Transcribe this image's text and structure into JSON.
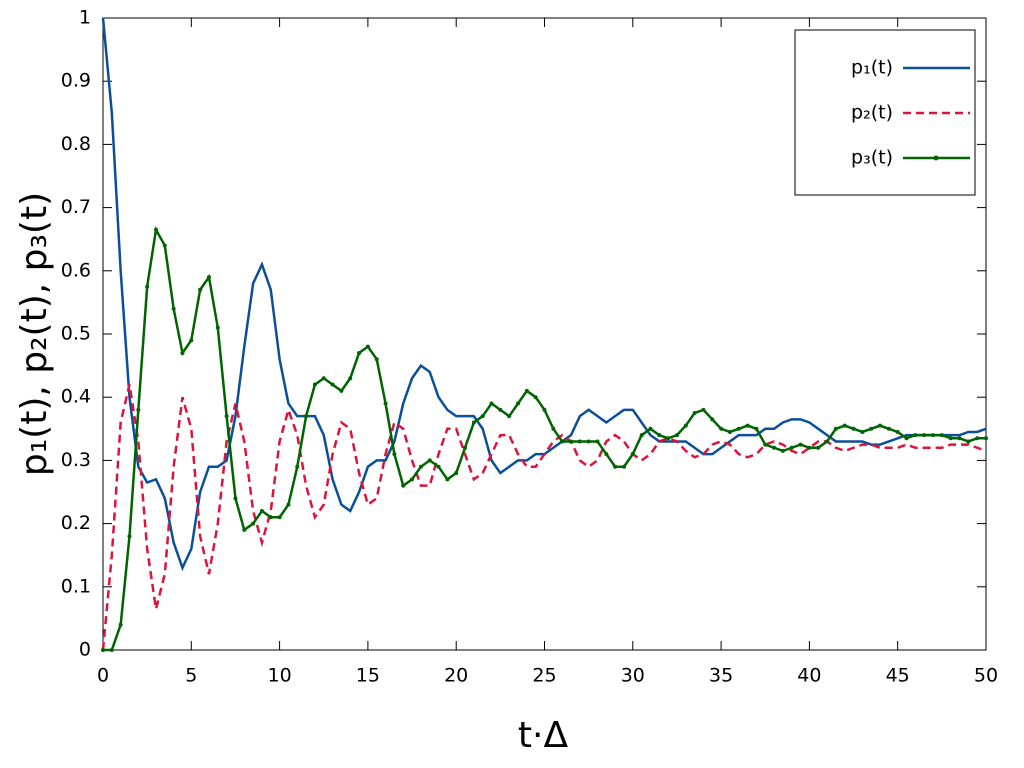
{
  "chart_data": {
    "type": "line",
    "xlabel": "t·Δ",
    "ylabel": "p₁(t), p₂(t), p₃(t)",
    "x": [
      0,
      0.5,
      1,
      1.5,
      2,
      2.5,
      3,
      3.5,
      4,
      4.5,
      5,
      5.5,
      6,
      6.5,
      7,
      7.5,
      8,
      8.5,
      9,
      9.5,
      10,
      10.5,
      11,
      11.5,
      12,
      12.5,
      13,
      13.5,
      14,
      14.5,
      15,
      15.5,
      16,
      16.5,
      17,
      17.5,
      18,
      18.5,
      19,
      19.5,
      20,
      20.5,
      21,
      21.5,
      22,
      22.5,
      23,
      23.5,
      24,
      24.5,
      25,
      25.5,
      26,
      26.5,
      27,
      27.5,
      28,
      28.5,
      29,
      29.5,
      30,
      30.5,
      31,
      31.5,
      32,
      32.5,
      33,
      33.5,
      34,
      34.5,
      35,
      35.5,
      36,
      36.5,
      37,
      37.5,
      38,
      38.5,
      39,
      39.5,
      40,
      40.5,
      41,
      41.5,
      42,
      42.5,
      43,
      43.5,
      44,
      44.5,
      45,
      45.5,
      46,
      46.5,
      47,
      47.5,
      48,
      48.5,
      49,
      49.5,
      50
    ],
    "series": [
      {
        "name": "p₁(t)",
        "color": "#0b4f9b",
        "line_style": "solid",
        "marker": "none",
        "values": [
          1,
          0.85,
          0.6,
          0.4,
          0.29,
          0.265,
          0.27,
          0.24,
          0.17,
          0.13,
          0.16,
          0.25,
          0.29,
          0.29,
          0.3,
          0.37,
          0.48,
          0.58,
          0.61,
          0.57,
          0.46,
          0.39,
          0.37,
          0.37,
          0.37,
          0.34,
          0.27,
          0.23,
          0.22,
          0.25,
          0.29,
          0.3,
          0.3,
          0.33,
          0.39,
          0.43,
          0.45,
          0.44,
          0.4,
          0.38,
          0.37,
          0.37,
          0.37,
          0.35,
          0.3,
          0.28,
          0.29,
          0.3,
          0.3,
          0.31,
          0.31,
          0.32,
          0.33,
          0.34,
          0.37,
          0.38,
          0.37,
          0.36,
          0.37,
          0.38,
          0.38,
          0.36,
          0.34,
          0.33,
          0.33,
          0.33,
          0.33,
          0.32,
          0.31,
          0.31,
          0.32,
          0.33,
          0.34,
          0.34,
          0.34,
          0.35,
          0.35,
          0.36,
          0.365,
          0.365,
          0.36,
          0.35,
          0.34,
          0.33,
          0.33,
          0.33,
          0.33,
          0.325,
          0.325,
          0.33,
          0.335,
          0.34,
          0.34,
          0.34,
          0.34,
          0.34,
          0.34,
          0.34,
          0.345,
          0.345,
          0.35
        ]
      },
      {
        "name": "p₂(t)",
        "color": "#dc143c",
        "line_style": "dashed",
        "marker": "none",
        "values": [
          0,
          0.15,
          0.36,
          0.42,
          0.33,
          0.16,
          0.065,
          0.12,
          0.29,
          0.4,
          0.35,
          0.18,
          0.12,
          0.2,
          0.33,
          0.39,
          0.33,
          0.22,
          0.17,
          0.22,
          0.33,
          0.38,
          0.34,
          0.26,
          0.21,
          0.23,
          0.31,
          0.36,
          0.35,
          0.28,
          0.23,
          0.24,
          0.31,
          0.36,
          0.35,
          0.3,
          0.26,
          0.26,
          0.31,
          0.35,
          0.35,
          0.31,
          0.27,
          0.28,
          0.31,
          0.34,
          0.34,
          0.31,
          0.29,
          0.29,
          0.31,
          0.33,
          0.34,
          0.33,
          0.3,
          0.29,
          0.3,
          0.33,
          0.34,
          0.33,
          0.31,
          0.3,
          0.31,
          0.33,
          0.335,
          0.33,
          0.315,
          0.305,
          0.31,
          0.325,
          0.33,
          0.325,
          0.31,
          0.305,
          0.31,
          0.325,
          0.33,
          0.325,
          0.315,
          0.31,
          0.32,
          0.33,
          0.33,
          0.32,
          0.315,
          0.32,
          0.325,
          0.325,
          0.32,
          0.32,
          0.32,
          0.325,
          0.32,
          0.32,
          0.32,
          0.32,
          0.325,
          0.325,
          0.325,
          0.32,
          0.315
        ]
      },
      {
        "name": "p₃(t)",
        "color": "#006400",
        "line_style": "solid",
        "marker": "circle",
        "values": [
          0,
          0,
          0.04,
          0.18,
          0.38,
          0.575,
          0.665,
          0.64,
          0.54,
          0.47,
          0.49,
          0.57,
          0.59,
          0.51,
          0.37,
          0.24,
          0.19,
          0.2,
          0.22,
          0.21,
          0.21,
          0.23,
          0.29,
          0.37,
          0.42,
          0.43,
          0.42,
          0.41,
          0.43,
          0.47,
          0.48,
          0.46,
          0.39,
          0.31,
          0.26,
          0.27,
          0.29,
          0.3,
          0.29,
          0.27,
          0.28,
          0.32,
          0.36,
          0.37,
          0.39,
          0.38,
          0.37,
          0.39,
          0.41,
          0.4,
          0.38,
          0.35,
          0.33,
          0.33,
          0.33,
          0.33,
          0.33,
          0.31,
          0.29,
          0.29,
          0.31,
          0.34,
          0.35,
          0.34,
          0.335,
          0.34,
          0.355,
          0.375,
          0.38,
          0.365,
          0.35,
          0.345,
          0.35,
          0.355,
          0.35,
          0.325,
          0.32,
          0.315,
          0.32,
          0.325,
          0.32,
          0.32,
          0.33,
          0.35,
          0.355,
          0.35,
          0.345,
          0.35,
          0.355,
          0.35,
          0.345,
          0.335,
          0.34,
          0.34,
          0.34,
          0.34,
          0.335,
          0.335,
          0.33,
          0.335,
          0.335
        ]
      }
    ],
    "xlim": [
      0,
      50
    ],
    "xticks": [
      0,
      5,
      10,
      15,
      20,
      25,
      30,
      35,
      40,
      45,
      50
    ],
    "ylim": [
      0,
      1
    ],
    "yticks": [
      0,
      0.1,
      0.2,
      0.3,
      0.4,
      0.5,
      0.6,
      0.7,
      0.8,
      0.9,
      1
    ],
    "grid": false,
    "legend": "top right"
  }
}
